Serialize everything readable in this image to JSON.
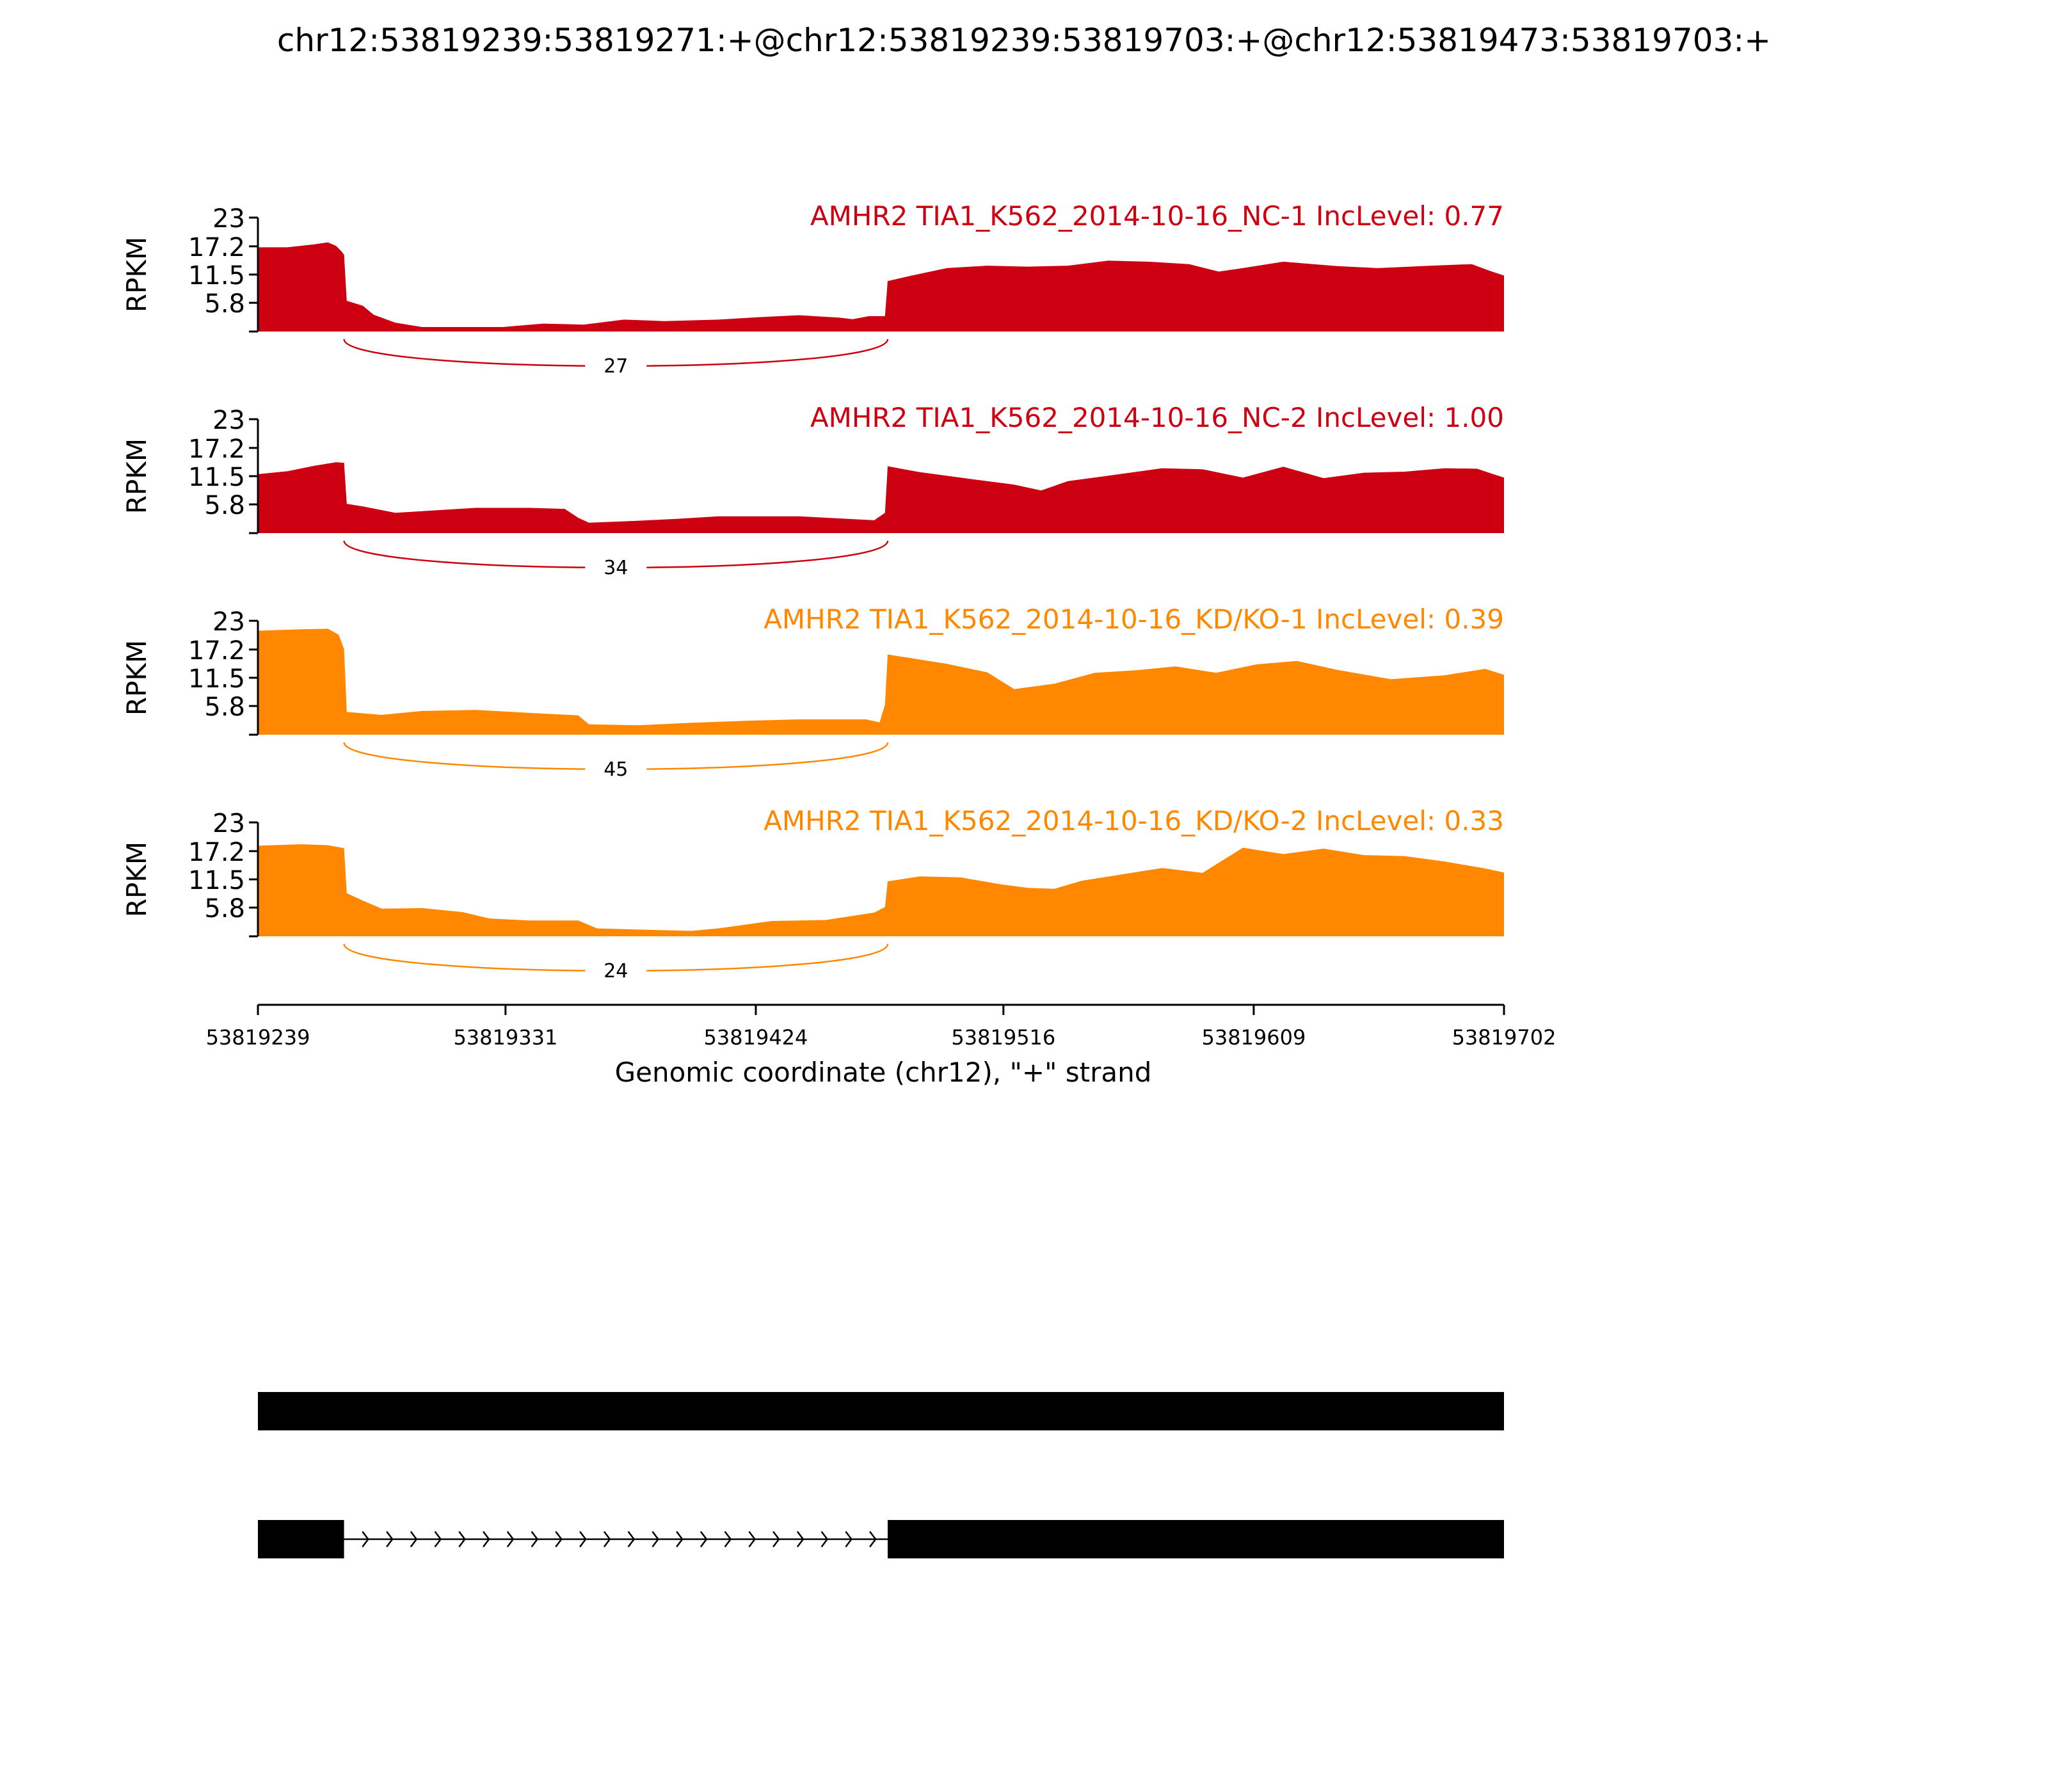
{
  "figure_title": "chr12:53819239:53819271:+@chr12:53819239:53819703:+@chr12:53819473:53819703:+",
  "chart_data": {
    "type": "area",
    "x_range": [
      53819239,
      53819702
    ],
    "ylim": [
      0,
      23
    ],
    "ylabel": "RPKM",
    "y_ticks": [
      "23",
      "17.2",
      "11.5",
      "5.8"
    ],
    "x_ticks": [
      53819239,
      53819331,
      53819424,
      53819516,
      53819609,
      53819702
    ],
    "x_tick_labels": [
      "53819239",
      "53819331",
      "53819424",
      "53819516",
      "53819609",
      "53819702"
    ],
    "xlabel": "Genomic coordinate (chr12), \"+\" strand",
    "series": [
      {
        "label": "AMHR2 TIA1_K562_2014-10-16_NC-1 IncLevel: 0.77",
        "color": "#cc0010",
        "junction_count": "27",
        "junction": [
          53819271,
          53819473
        ],
        "coverage": [
          [
            53819239,
            17
          ],
          [
            53819250,
            17
          ],
          [
            53819260,
            17.6
          ],
          [
            53819265,
            18
          ],
          [
            53819268,
            17.3
          ],
          [
            53819270,
            16.2
          ],
          [
            53819271,
            15.5
          ],
          [
            53819272,
            6.2
          ],
          [
            53819278,
            5.2
          ],
          [
            53819282,
            3.4
          ],
          [
            53819290,
            1.8
          ],
          [
            53819300,
            0.9
          ],
          [
            53819330,
            0.9
          ],
          [
            53819345,
            1.6
          ],
          [
            53819360,
            1.4
          ],
          [
            53819375,
            2.4
          ],
          [
            53819390,
            2.1
          ],
          [
            53819410,
            2.4
          ],
          [
            53819425,
            2.9
          ],
          [
            53819440,
            3.3
          ],
          [
            53819455,
            2.8
          ],
          [
            53819460,
            2.5
          ],
          [
            53819466,
            3.1
          ],
          [
            53819472,
            3.1
          ],
          [
            53819473,
            10.2
          ],
          [
            53819482,
            11.3
          ],
          [
            53819495,
            12.8
          ],
          [
            53819510,
            13.3
          ],
          [
            53819525,
            13.1
          ],
          [
            53819540,
            13.3
          ],
          [
            53819555,
            14.3
          ],
          [
            53819570,
            14.1
          ],
          [
            53819585,
            13.6
          ],
          [
            53819596,
            12.1
          ],
          [
            53819605,
            12.8
          ],
          [
            53819620,
            14.1
          ],
          [
            53819640,
            13.2
          ],
          [
            53819655,
            12.8
          ],
          [
            53819675,
            13.3
          ],
          [
            53819690,
            13.6
          ],
          [
            53819697,
            12.2
          ],
          [
            53819702,
            11.3
          ]
        ]
      },
      {
        "label": "AMHR2 TIA1_K562_2014-10-16_NC-2 IncLevel: 1.00",
        "color": "#cc0010",
        "junction_count": "34",
        "junction": [
          53819271,
          53819473
        ],
        "coverage": [
          [
            53819239,
            11.9
          ],
          [
            53819250,
            12.5
          ],
          [
            53819260,
            13.6
          ],
          [
            53819268,
            14.3
          ],
          [
            53819271,
            14.2
          ],
          [
            53819272,
            5.9
          ],
          [
            53819278,
            5.4
          ],
          [
            53819290,
            4.1
          ],
          [
            53819305,
            4.6
          ],
          [
            53819320,
            5.1
          ],
          [
            53819340,
            5.1
          ],
          [
            53819353,
            4.9
          ],
          [
            53819358,
            3.1
          ],
          [
            53819362,
            2.1
          ],
          [
            53819380,
            2.5
          ],
          [
            53819395,
            2.9
          ],
          [
            53819410,
            3.4
          ],
          [
            53819440,
            3.4
          ],
          [
            53819468,
            2.6
          ],
          [
            53819472,
            4.1
          ],
          [
            53819473,
            13.5
          ],
          [
            53819485,
            12.3
          ],
          [
            53819500,
            11.2
          ],
          [
            53819520,
            9.8
          ],
          [
            53819530,
            8.6
          ],
          [
            53819540,
            10.5
          ],
          [
            53819555,
            11.6
          ],
          [
            53819575,
            13.1
          ],
          [
            53819590,
            12.9
          ],
          [
            53819605,
            11.2
          ],
          [
            53819620,
            13.4
          ],
          [
            53819635,
            11.1
          ],
          [
            53819650,
            12.2
          ],
          [
            53819665,
            12.4
          ],
          [
            53819680,
            13.1
          ],
          [
            53819692,
            13
          ],
          [
            53819698,
            11.9
          ],
          [
            53819702,
            11.2
          ]
        ]
      },
      {
        "label": "AMHR2 TIA1_K562_2014-10-16_KD/KO-1 IncLevel: 0.39",
        "color": "#ff8800",
        "junction_count": "45",
        "junction": [
          53819271,
          53819473
        ],
        "coverage": [
          [
            53819239,
            21
          ],
          [
            53819255,
            21.3
          ],
          [
            53819265,
            21.4
          ],
          [
            53819269,
            20.2
          ],
          [
            53819271,
            17.3
          ],
          [
            53819272,
            4.6
          ],
          [
            53819285,
            4
          ],
          [
            53819300,
            4.8
          ],
          [
            53819320,
            5
          ],
          [
            53819340,
            4.4
          ],
          [
            53819358,
            3.9
          ],
          [
            53819362,
            2.1
          ],
          [
            53819380,
            1.9
          ],
          [
            53819400,
            2.4
          ],
          [
            53819420,
            2.8
          ],
          [
            53819440,
            3.1
          ],
          [
            53819465,
            3.1
          ],
          [
            53819470,
            2.5
          ],
          [
            53819472,
            6.1
          ],
          [
            53819473,
            16.2
          ],
          [
            53819480,
            15.6
          ],
          [
            53819495,
            14.3
          ],
          [
            53819510,
            12.6
          ],
          [
            53819520,
            9.2
          ],
          [
            53819535,
            10.3
          ],
          [
            53819550,
            12.5
          ],
          [
            53819565,
            13
          ],
          [
            53819580,
            13.8
          ],
          [
            53819595,
            12.5
          ],
          [
            53819610,
            14.2
          ],
          [
            53819625,
            14.9
          ],
          [
            53819640,
            13.1
          ],
          [
            53819660,
            11.2
          ],
          [
            53819680,
            12
          ],
          [
            53819695,
            13.3
          ],
          [
            53819702,
            12.1
          ]
        ]
      },
      {
        "label": "AMHR2 TIA1_K562_2014-10-16_KD/KO-2 IncLevel: 0.33",
        "color": "#ff8800",
        "junction_count": "24",
        "junction": [
          53819271,
          53819473
        ],
        "coverage": [
          [
            53819239,
            18.3
          ],
          [
            53819255,
            18.6
          ],
          [
            53819265,
            18.4
          ],
          [
            53819271,
            17.8
          ],
          [
            53819272,
            8.7
          ],
          [
            53819278,
            7.2
          ],
          [
            53819285,
            5.6
          ],
          [
            53819300,
            5.7
          ],
          [
            53819315,
            4.9
          ],
          [
            53819325,
            3.6
          ],
          [
            53819340,
            3.2
          ],
          [
            53819358,
            3.2
          ],
          [
            53819365,
            1.6
          ],
          [
            53819385,
            1.3
          ],
          [
            53819400,
            1.1
          ],
          [
            53819410,
            1.6
          ],
          [
            53819430,
            3.1
          ],
          [
            53819450,
            3.3
          ],
          [
            53819468,
            4.8
          ],
          [
            53819472,
            5.9
          ],
          [
            53819473,
            11.1
          ],
          [
            53819485,
            12.1
          ],
          [
            53819500,
            11.9
          ],
          [
            53819515,
            10.5
          ],
          [
            53819525,
            9.8
          ],
          [
            53819535,
            9.6
          ],
          [
            53819545,
            11.2
          ],
          [
            53819560,
            12.5
          ],
          [
            53819575,
            13.8
          ],
          [
            53819590,
            12.8
          ],
          [
            53819605,
            17.9
          ],
          [
            53819620,
            16.6
          ],
          [
            53819635,
            17.7
          ],
          [
            53819650,
            16.4
          ],
          [
            53819665,
            16.2
          ],
          [
            53819680,
            15.1
          ],
          [
            53819695,
            13.7
          ],
          [
            53819702,
            12.9
          ]
        ]
      }
    ],
    "gene_models": [
      {
        "exons": [
          [
            53819239,
            53819702
          ]
        ]
      },
      {
        "exons": [
          [
            53819239,
            53819271
          ],
          [
            53819473,
            53819702
          ]
        ],
        "intron": [
          53819271,
          53819473
        ]
      }
    ]
  }
}
